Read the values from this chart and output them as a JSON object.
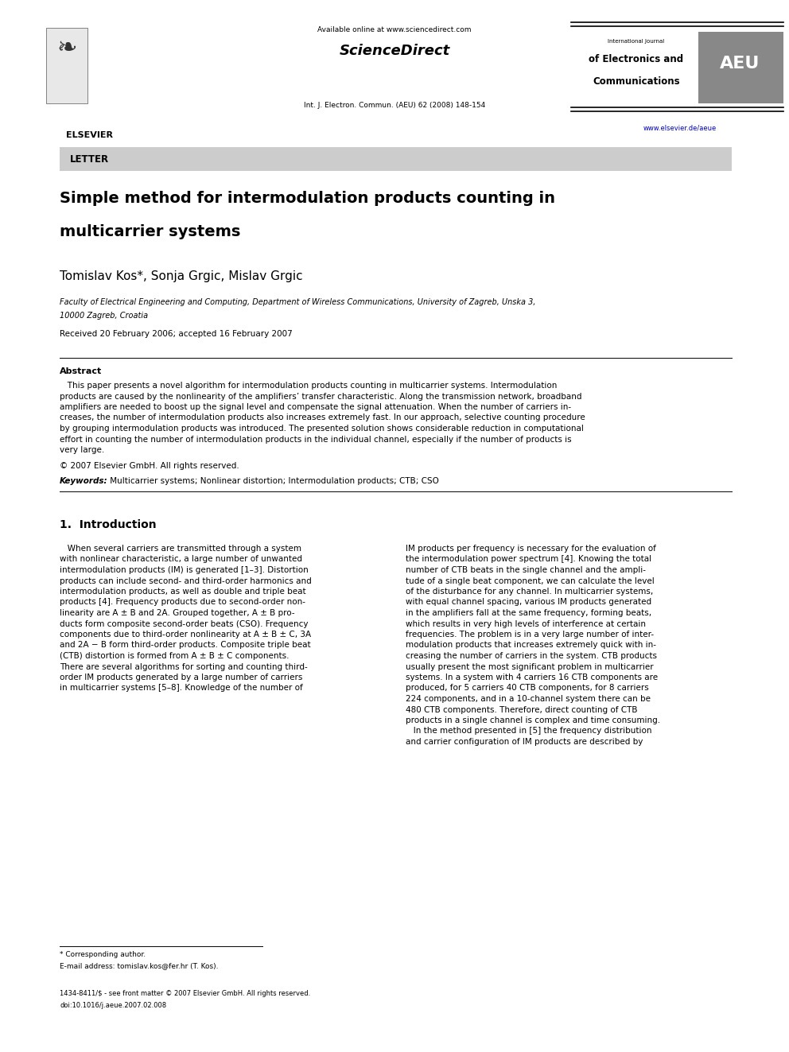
{
  "page_width": 9.92,
  "page_height": 13.23,
  "dpi": 100,
  "bg_color": "#ffffff",
  "header_available_text": "Available online at www.sciencedirect.com",
  "header_sd_text": "ScienceDirect",
  "header_journal_text": "Int. J. Electron. Commun. (AEU) 62 (2008) 148-154",
  "header_elsevier": "ELSEVIER",
  "header_url": "www.elsevier.de/aeue",
  "aeu_line1": "International Journal",
  "aeu_line2": "of Electronics and",
  "aeu_line3": "Communications",
  "aeu_text": "AEU",
  "letter_label": "LETTER",
  "letter_bg": "#cccccc",
  "title_line1": "Simple method for intermodulation products counting in",
  "title_line2": "multicarrier systems",
  "authors": "Tomislav Kos*, Sonja Grgic, Mislav Grgic",
  "affiliation_line1": "Faculty of Electrical Engineering and Computing, Department of Wireless Communications, University of Zagreb, Unska 3,",
  "affiliation_line2": "10000 Zagreb, Croatia",
  "received": "Received 20 February 2006; accepted 16 February 2007",
  "abstract_title": "Abstract",
  "abstract_indent": "   This paper presents a novel algorithm for intermodulation products counting in multicarrier systems. Intermodulation",
  "abstract_l2": "products are caused by the nonlinearity of the amplifiers’ transfer characteristic. Along the transmission network, broadband",
  "abstract_l3": "amplifiers are needed to boost up the signal level and compensate the signal attenuation. When the number of carriers in-",
  "abstract_l4": "creases, the number of intermodulation products also increases extremely fast. In our approach, selective counting procedure",
  "abstract_l5": "by grouping intermodulation products was introduced. The presented solution shows considerable reduction in computational",
  "abstract_l6": "effort in counting the number of intermodulation products in the individual channel, especially if the number of products is",
  "abstract_l7": "very large.",
  "copyright": "© 2007 Elsevier GmbH. All rights reserved.",
  "keywords_label": "Keywords:",
  "keywords_text": " Multicarrier systems; Nonlinear distortion; Intermodulation products; CTB; CSO",
  "section1_title": "1.  Introduction",
  "c1l01": "   When several carriers are transmitted through a system",
  "c1l02": "with nonlinear characteristic, a large number of unwanted",
  "c1l03": "intermodulation products (IM) is generated [1–3]. Distortion",
  "c1l04": "products can include second- and third-order harmonics and",
  "c1l05": "intermodulation products, as well as double and triple beat",
  "c1l06": "products [4]. Frequency products due to second-order non-",
  "c1l07": "linearity are A ± B and 2A. Grouped together, A ± B pro-",
  "c1l08": "ducts form composite second-order beats (CSO). Frequency",
  "c1l09": "components due to third-order nonlinearity at A ± B ± C, 3A",
  "c1l10": "and 2A − B form third-order products. Composite triple beat",
  "c1l11": "(CTB) distortion is formed from A ± B ± C components.",
  "c1l12": "There are several algorithms for sorting and counting third-",
  "c1l13": "order IM products generated by a large number of carriers",
  "c1l14": "in multicarrier systems [5–8]. Knowledge of the number of",
  "c2l01": "IM products per frequency is necessary for the evaluation of",
  "c2l02": "the intermodulation power spectrum [4]. Knowing the total",
  "c2l03": "number of CTB beats in the single channel and the ampli-",
  "c2l04": "tude of a single beat component, we can calculate the level",
  "c2l05": "of the disturbance for any channel. In multicarrier systems,",
  "c2l06": "with equal channel spacing, various IM products generated",
  "c2l07": "in the amplifiers fall at the same frequency, forming beats,",
  "c2l08": "which results in very high levels of interference at certain",
  "c2l09": "frequencies. The problem is in a very large number of inter-",
  "c2l10": "modulation products that increases extremely quick with in-",
  "c2l11": "creasing the number of carriers in the system. CTB products",
  "c2l12": "usually present the most significant problem in multicarrier",
  "c2l13": "systems. In a system with 4 carriers 16 CTB components are",
  "c2l14": "produced, for 5 carriers 40 CTB components, for 8 carriers",
  "c2l15": "224 components, and in a 10-channel system there can be",
  "c2l16": "480 CTB components. Therefore, direct counting of CTB",
  "c2l17": "products in a single channel is complex and time consuming.",
  "c2l18": "   In the method presented in [5] the frequency distribution",
  "c2l19": "and carrier configuration of IM products are described by",
  "footnote_star": "* Corresponding author.",
  "footnote_email": "E-mail address: tomislav.kos@fer.hr (T. Kos).",
  "footer_issn": "1434-8411/$ - see front matter © 2007 Elsevier GmbH. All rights reserved.",
  "footer_doi": "doi:10.1016/j.aeue.2007.02.008"
}
